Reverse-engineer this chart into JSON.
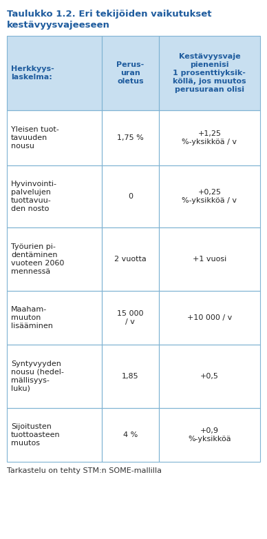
{
  "title_line1": "Taulukko 1.2. Eri tekijöiden vaikutukset",
  "title_line2": "kestävyysvajeeseen",
  "title_color": "#1f5c9e",
  "header_bg": "#c8dff0",
  "header_text_color": "#1f5c9e",
  "border_color": "#7fb3d3",
  "col_headers": [
    "Herkkyys-\nlaskelma:",
    "Perus-\nuran\noletus",
    "Kestävyysvaje\npienenisi\n1 prosenttiyksik-\nköllä, jos muutos\nperusuraan olisi"
  ],
  "rows": [
    {
      "col1": "Yleisen tuot-\ntavuuden\nnousu",
      "col2": "1,75 %",
      "col3": "+1,25\n%-yksikköä / v"
    },
    {
      "col1": "Hyvinvointi-\npalvelujen\ntuottavuu-\nden nosto",
      "col2": "0",
      "col3": "+0,25\n%-yksikköä / v"
    },
    {
      "col1": "Työurien pi-\ndentäminen\nvuoteen 2060\nmennessä",
      "col2": "2 vuotta",
      "col3": "+1 vuosi"
    },
    {
      "col1": "Maaham-\nmuuton\nlisääminen",
      "col2": "15 000\n/ v",
      "col3": "+10 000 / v"
    },
    {
      "col1": "Syntyvyyden\nnousu (hedel-\nmällisyys-\nluku)",
      "col2": "1,85",
      "col3": "+0,5"
    },
    {
      "col1": "Sijoitusten\ntuottoasteen\nmuutos",
      "col2": "4 %",
      "col3": "+0,9\n%-yksikköä"
    }
  ],
  "footer": "Tarkastelu on tehty STM:n SOME-mallilla",
  "figsize": [
    3.88,
    7.82
  ],
  "dpi": 100
}
